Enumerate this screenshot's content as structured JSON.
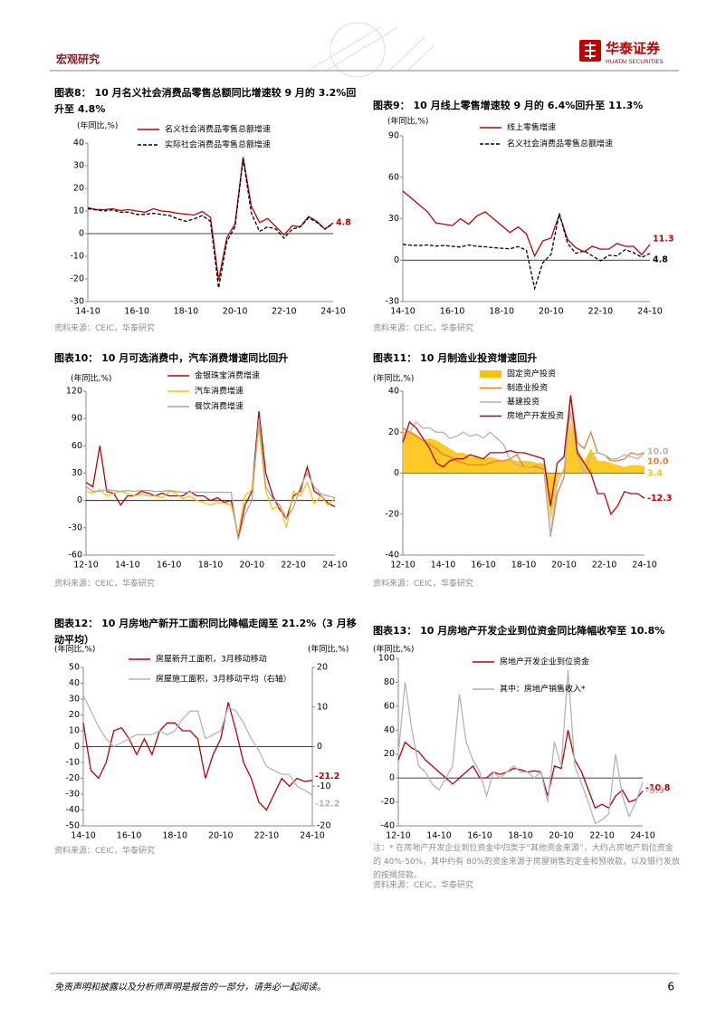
{
  "header": {
    "section": "宏观研究",
    "brand": "华泰证券",
    "brand_en": "HUATAI SECURITIES"
  },
  "chart_data": [
    {
      "type": "line",
      "title": "图表8：  10 月名义社会消费品零售总额同比增速较 9 月的 3.2%回升至 4.8%",
      "y_label": "(年同比,%)",
      "categories": [
        "14-10",
        null,
        null,
        null,
        null,
        null,
        "16-10",
        null,
        null,
        null,
        null,
        null,
        "18-10",
        null,
        null,
        null,
        null,
        null,
        "20-10",
        null,
        null,
        null,
        null,
        null,
        "22-10",
        null,
        null,
        null,
        null,
        null,
        "24-10"
      ],
      "ylim": [
        -30,
        40
      ],
      "yticks": [
        -30,
        -20,
        -10,
        0,
        10,
        20,
        30,
        40
      ],
      "series": [
        {
          "name": "名义社会消费品零售总额增速",
          "color": "#c00000",
          "style": "line",
          "values": [
            11.5,
            10.7,
            10.6,
            11,
            10.2,
            10.6,
            10,
            9.5,
            11,
            10,
            9.7,
            9,
            8.6,
            8.2,
            9.8,
            7.2,
            -20.5,
            -1.8,
            4.3,
            33.8,
            12.1,
            4.9,
            6.7,
            3.1,
            -0.5,
            3.5,
            3.1,
            7.6,
            5.5,
            2,
            4.8
          ]
        },
        {
          "name": "实际社会消费品零售总额增速",
          "color": "#000000",
          "style": "dashed",
          "values": [
            11,
            10.5,
            10,
            10.5,
            9.5,
            9.5,
            8.5,
            8.5,
            9,
            8.5,
            8,
            6.5,
            5.5,
            6.5,
            8,
            5.5,
            -24,
            -3.5,
            3,
            33,
            9,
            1,
            3,
            2,
            -2,
            2,
            3,
            7,
            5,
            2,
            4.5
          ]
        }
      ],
      "source": "资料来源：CEIC，华泰研究"
    },
    {
      "type": "line",
      "title": "图表9：  10 月线上零售增速较 9 月的 6.4%回升至 11.3%",
      "y_label": "(年同比,%)",
      "categories": [
        "14-10",
        null,
        null,
        null,
        null,
        null,
        "16-10",
        null,
        null,
        null,
        null,
        null,
        "18-10",
        null,
        null,
        null,
        null,
        null,
        "20-10",
        null,
        null,
        null,
        null,
        null,
        "22-10",
        null,
        null,
        null,
        null,
        null,
        "24-10"
      ],
      "ylim": [
        -30,
        90
      ],
      "yticks": [
        -30,
        0,
        30,
        60,
        90
      ],
      "series": [
        {
          "name": "线上零售增速",
          "color": "#c00000",
          "style": "line",
          "values": [
            50,
            45,
            40,
            35,
            27,
            26,
            25,
            30,
            26,
            32,
            35,
            30,
            25,
            20,
            24,
            19,
            3,
            14,
            16,
            33,
            15,
            9,
            6,
            10,
            8,
            8,
            12,
            10,
            10,
            4,
            11.3
          ]
        },
        {
          "name": "名义社会消费品零售总额增速",
          "color": "#000000",
          "style": "dashed",
          "values": [
            11.5,
            10.7,
            10.6,
            11,
            10.2,
            10.6,
            10,
            9.5,
            11,
            10,
            9.7,
            9,
            8.6,
            8.2,
            9.8,
            7.2,
            -20.5,
            -1.8,
            4.3,
            33.8,
            12.1,
            4.9,
            6.7,
            3.1,
            -0.5,
            3.5,
            3.1,
            7.6,
            5.5,
            2,
            4.8
          ]
        }
      ],
      "source": "资料来源：CEIC，华泰研究"
    },
    {
      "type": "line",
      "title": "图表10：  10 月可选消费中，汽车消费增速同比回升",
      "y_label": "(年同比,%)",
      "categories": [
        "12-10",
        null,
        null,
        null,
        null,
        null,
        "14-10",
        null,
        null,
        null,
        null,
        null,
        "16-10",
        null,
        null,
        null,
        null,
        null,
        "18-10",
        null,
        null,
        null,
        null,
        null,
        "20-10",
        null,
        null,
        null,
        null,
        null,
        "22-10",
        null,
        null,
        null,
        null,
        null,
        "24-10"
      ],
      "ylim": [
        -60,
        120
      ],
      "yticks": [
        -60,
        -30,
        0,
        30,
        60,
        90,
        120
      ],
      "series": [
        {
          "name": "金银珠宝消费增速",
          "color": "#c00000",
          "style": "line",
          "values": [
            20,
            15,
            60,
            10,
            8,
            -5,
            5,
            5,
            10,
            8,
            5,
            8,
            5,
            5,
            5,
            10,
            5,
            5,
            0,
            3,
            -2,
            0,
            -40,
            -5,
            10,
            98,
            30,
            5,
            -10,
            -20,
            5,
            10,
            37,
            10,
            5,
            -3,
            -7
          ]
        },
        {
          "name": "汽车消费增速",
          "color": "#ffc000",
          "style": "line",
          "values": [
            10,
            8,
            12,
            5,
            8,
            10,
            8,
            5,
            7,
            5,
            5,
            3,
            10,
            8,
            2,
            5,
            0,
            -2,
            -5,
            -2,
            -3,
            -5,
            -37,
            5,
            12,
            80,
            10,
            -10,
            -5,
            -30,
            10,
            5,
            20,
            -3,
            5,
            -5,
            3
          ]
        },
        {
          "name": "餐饮消费增速",
          "color": "#a6a6a6",
          "style": "line",
          "values": [
            15,
            10,
            10,
            12,
            11,
            10,
            11,
            10,
            11,
            11,
            10,
            10,
            11,
            10,
            9,
            9,
            9,
            9,
            9,
            9,
            9,
            9,
            -43,
            -15,
            0,
            90,
            15,
            2,
            -5,
            -20,
            -8,
            15,
            30,
            15,
            7,
            5,
            3
          ]
        }
      ],
      "source": "资料来源：CEIC，华泰研究"
    },
    {
      "type": "line",
      "title": "图表11：  10 月制造业投资增速回升",
      "y_label": "(年同比,%)",
      "categories": [
        "12-10",
        null,
        null,
        null,
        null,
        null,
        "14-10",
        null,
        null,
        null,
        null,
        null,
        "16-10",
        null,
        null,
        null,
        null,
        null,
        "18-10",
        null,
        null,
        null,
        null,
        null,
        "20-10",
        null,
        null,
        null,
        null,
        null,
        "22-10",
        null,
        null,
        null,
        null,
        null,
        "24-10"
      ],
      "ylim": [
        -40,
        40
      ],
      "yticks": [
        -40,
        -20,
        0,
        20,
        40
      ],
      "series": [
        {
          "name": "固定资产投资",
          "color": "#ffc000",
          "style": "area",
          "values": [
            20,
            21,
            19,
            16,
            17,
            16,
            14,
            12,
            10,
            10,
            8,
            8,
            7,
            8,
            7,
            6,
            7,
            6,
            6,
            6,
            5,
            5,
            -24,
            -3,
            2,
            25,
            12,
            6,
            12,
            6,
            6,
            5,
            4,
            3,
            4,
            4,
            3.4
          ]
        },
        {
          "name": "制造业投资",
          "color": "#ed7d31",
          "style": "line",
          "values": [
            22,
            20,
            18,
            16,
            14,
            12,
            9,
            8,
            6,
            5,
            4,
            4,
            4,
            5,
            6,
            6,
            7,
            9,
            3,
            3,
            3,
            2,
            -31,
            -10,
            -2,
            38,
            15,
            12,
            20,
            10,
            9,
            6,
            6,
            7,
            10,
            9,
            10
          ],
          "value_labels": [
            null,
            null,
            null,
            null,
            null,
            null,
            null,
            null,
            null,
            null,
            null,
            null,
            null,
            null,
            null,
            null,
            null,
            null,
            null,
            null,
            null,
            null,
            null,
            null,
            null,
            null,
            null,
            null,
            null,
            null,
            null,
            null,
            null,
            null,
            null,
            null,
            "10.0"
          ]
        },
        {
          "name": "基建投资",
          "color": "#b4b4b4",
          "style": "line",
          "values": [
            15,
            20,
            25,
            22,
            22,
            20,
            20,
            17,
            18,
            20,
            18,
            19,
            17,
            20,
            17,
            14,
            6,
            4,
            3,
            3,
            4,
            4,
            -30,
            -5,
            2,
            30,
            8,
            0,
            9,
            10,
            9,
            7,
            7,
            9,
            8,
            7,
            10
          ],
          "value_labels": [
            null,
            null,
            null,
            null,
            null,
            null,
            null,
            null,
            null,
            null,
            null,
            null,
            null,
            null,
            null,
            null,
            null,
            null,
            null,
            null,
            null,
            null,
            null,
            null,
            null,
            null,
            null,
            null,
            null,
            null,
            null,
            null,
            null,
            null,
            null,
            null,
            "10.0"
          ]
        },
        {
          "name": "房地产开发投资",
          "color": "#c00000",
          "style": "line",
          "values": [
            15,
            25,
            22,
            17,
            12,
            5,
            3,
            6,
            7,
            7,
            9,
            8,
            7,
            10,
            10,
            10,
            11,
            10,
            10,
            9,
            8,
            7,
            -16,
            5,
            8,
            38,
            10,
            5,
            0,
            -10,
            -10,
            -20,
            -16,
            -9,
            -10,
            -10,
            -12.3
          ]
        }
      ],
      "source": "资料来源：CEIC，华泰研究"
    },
    {
      "type": "line",
      "title": "图表12：  10 月房地产新开工面积同比降幅走阔至 21.2%（3 月移动平均）",
      "y_label": "(年同比,%)",
      "y2_label": "(年同比,%)",
      "categories": [
        "14-10",
        null,
        null,
        null,
        null,
        null,
        "16-10",
        null,
        null,
        null,
        null,
        null,
        "18-10",
        null,
        null,
        null,
        null,
        null,
        "20-10",
        null,
        null,
        null,
        null,
        null,
        "22-10",
        null,
        null,
        null,
        null,
        null,
        "24-10"
      ],
      "ylim": [
        -50,
        50
      ],
      "yticks": [
        -50,
        -40,
        -30,
        -20,
        -10,
        0,
        10,
        20,
        30,
        40,
        50
      ],
      "y2lim": [
        -20,
        20
      ],
      "y2ticks": [
        -20,
        -10,
        0,
        10,
        20
      ],
      "series": [
        {
          "name": "房屋新开工面积，3月移动移动",
          "color": "#c00000",
          "style": "line",
          "values": [
            15,
            -15,
            -20,
            -10,
            10,
            12,
            5,
            -5,
            5,
            -5,
            10,
            15,
            15,
            10,
            10,
            5,
            -20,
            -5,
            5,
            28,
            10,
            -10,
            -20,
            -35,
            -40,
            -30,
            -20,
            -25,
            -20,
            -22,
            -21.2
          ]
        },
        {
          "name": "房屋施工面积，3月移动平均（右轴）",
          "color": "#b4b4b4",
          "style": "line",
          "axis": "y2",
          "values": [
            13,
            9,
            5,
            2,
            0,
            1,
            2,
            3,
            3,
            3,
            4,
            3,
            4,
            7,
            9,
            9,
            2,
            3,
            4,
            10,
            9,
            6,
            2,
            -1,
            -5,
            -6,
            -7,
            -7,
            -10,
            -11,
            -12.2
          ]
        }
      ],
      "source": "资料来源：CEIC，华泰研究"
    },
    {
      "type": "line",
      "title": "图表13：  10 月房地产开发企业到位资金同比降幅收窄至 10.8%",
      "y_label": "(年同比,%)",
      "categories": [
        "12-10",
        null,
        null,
        null,
        null,
        null,
        "14-10",
        null,
        null,
        null,
        null,
        null,
        "16-10",
        null,
        null,
        null,
        null,
        null,
        "18-10",
        null,
        null,
        null,
        null,
        null,
        "20-10",
        null,
        null,
        null,
        null,
        null,
        "22-10",
        null,
        null,
        null,
        null,
        null,
        "24-10"
      ],
      "ylim": [
        -40,
        100
      ],
      "yticks": [
        -40,
        -20,
        0,
        20,
        40,
        60,
        80,
        100
      ],
      "series": [
        {
          "name": "房地产开发企业到位资金",
          "color": "#c00000",
          "style": "line",
          "values": [
            15,
            30,
            25,
            22,
            15,
            10,
            5,
            0,
            -5,
            0,
            5,
            10,
            0,
            0,
            5,
            3,
            5,
            8,
            7,
            5,
            6,
            5,
            -15,
            10,
            8,
            40,
            15,
            5,
            -10,
            -25,
            -22,
            -25,
            -15,
            -10,
            -20,
            -18,
            -10.8
          ]
        },
        {
          "name": "其中：房地产销售收入*",
          "color": "#b4b4b4",
          "style": "line",
          "values": [
            20,
            80,
            40,
            10,
            5,
            -5,
            -10,
            0,
            10,
            70,
            30,
            15,
            5,
            -15,
            5,
            0,
            5,
            10,
            5,
            5,
            0,
            5,
            -20,
            30,
            10,
            90,
            10,
            -5,
            -20,
            -38,
            -35,
            -30,
            20,
            -15,
            -32,
            -20,
            -3.3
          ]
        }
      ],
      "note": "注：* 在房地产开发企业到位资金中归类于“其他资金来源”，大约占房地产到位资金的 40%-50%，其中约有 80%的资金来源于房屋销售的定金和预收款，以及银行发放的按揭贷款。",
      "source": "资料来源：CEIC，华泰研究"
    }
  ],
  "footer": {
    "disclaimer": "免责声明和披露以及分析师声明是报告的一部分，请务必一起阅读。",
    "page": 6
  }
}
